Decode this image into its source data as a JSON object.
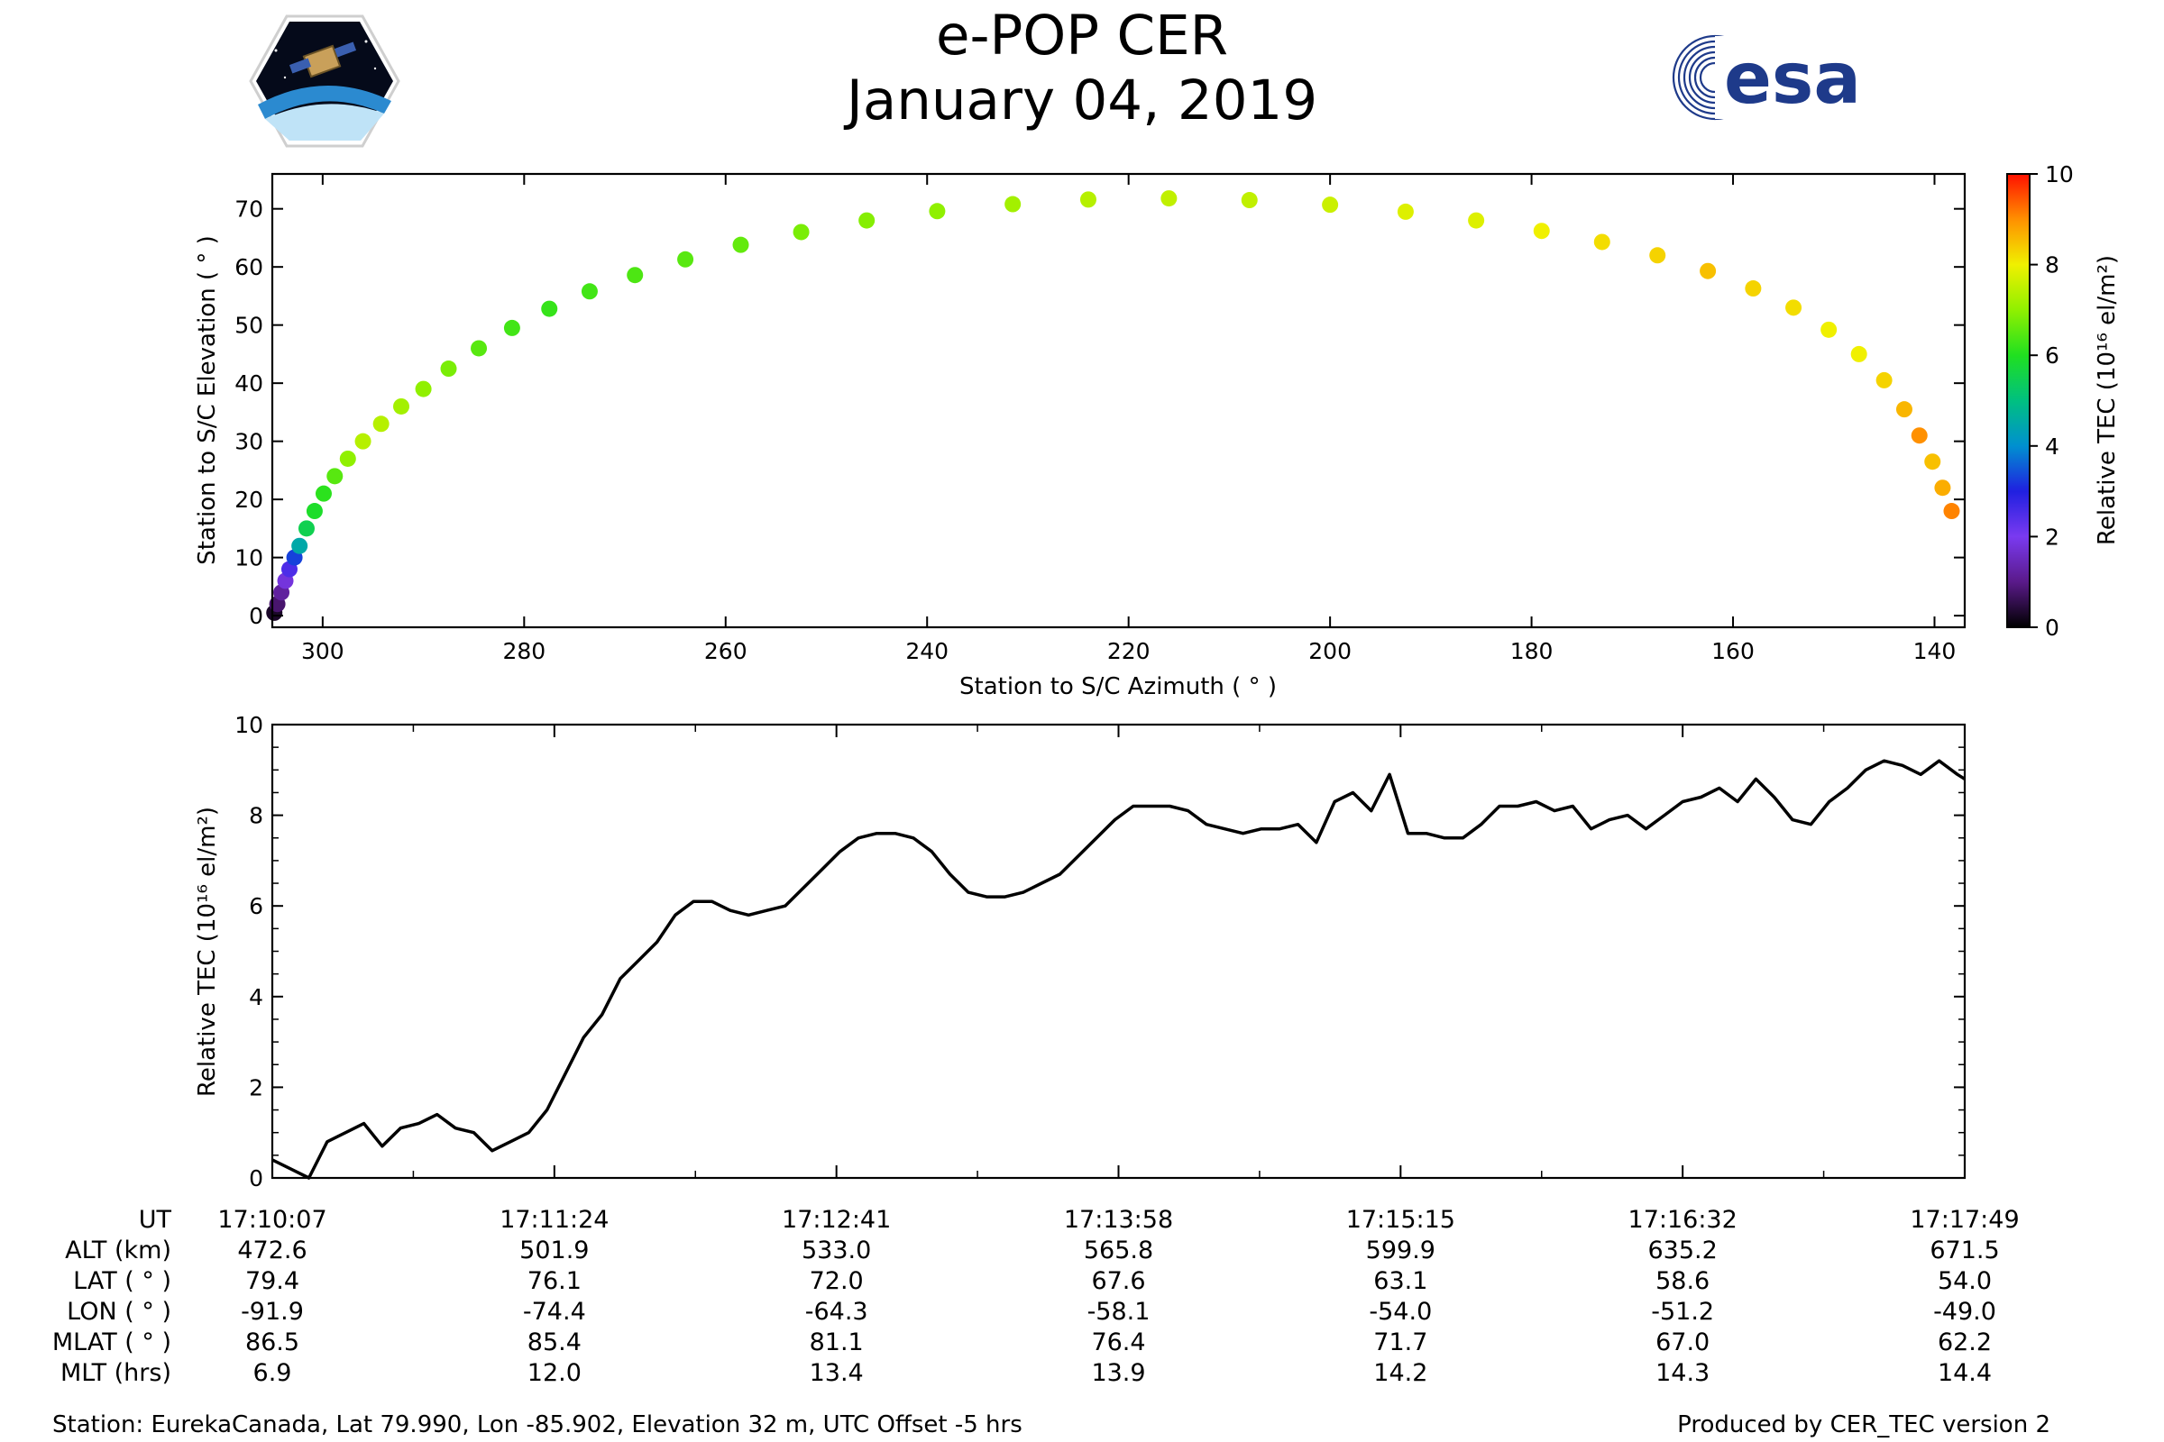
{
  "header": {
    "title": "e-POP CER",
    "date": "January 04, 2019"
  },
  "logos": {
    "left": "cassiope-mission-logo",
    "right": "esa-logo",
    "esa_text": "esa",
    "esa_color": "#1e3a8a"
  },
  "chart_data": [
    {
      "type": "scatter",
      "name": "elevation-azimuth",
      "xlabel": "Station to S/C Azimuth ( ° )",
      "ylabel": "Station to S/C Elevation ( ° )",
      "xlim": [
        305,
        137
      ],
      "ylim": [
        -2,
        76
      ],
      "xticks": [
        300,
        280,
        260,
        240,
        220,
        200,
        180,
        160,
        140
      ],
      "yticks": [
        0,
        10,
        20,
        30,
        40,
        50,
        60,
        70
      ],
      "colorbar": {
        "label": "Relative TEC (10¹⁶ el/m²)",
        "range": [
          0,
          10
        ],
        "ticks": [
          0,
          2,
          4,
          6,
          8,
          10
        ],
        "colormap": "gist_ncar-like"
      },
      "points": [
        {
          "az": 304.8,
          "el": 0.5,
          "tec": 0.3
        },
        {
          "az": 304.5,
          "el": 2.0,
          "tec": 0.8
        },
        {
          "az": 304.1,
          "el": 4.0,
          "tec": 1.2
        },
        {
          "az": 303.7,
          "el": 6.0,
          "tec": 1.8
        },
        {
          "az": 303.3,
          "el": 8.0,
          "tec": 2.5
        },
        {
          "az": 302.8,
          "el": 10.0,
          "tec": 3.3
        },
        {
          "az": 302.3,
          "el": 12.0,
          "tec": 4.5
        },
        {
          "az": 301.6,
          "el": 15.0,
          "tec": 5.5
        },
        {
          "az": 300.8,
          "el": 18.0,
          "tec": 5.9
        },
        {
          "az": 299.9,
          "el": 21.0,
          "tec": 6.1
        },
        {
          "az": 298.8,
          "el": 24.0,
          "tec": 6.5
        },
        {
          "az": 297.5,
          "el": 27.0,
          "tec": 7.0
        },
        {
          "az": 296.0,
          "el": 30.0,
          "tec": 7.4
        },
        {
          "az": 294.2,
          "el": 33.0,
          "tec": 7.4
        },
        {
          "az": 292.2,
          "el": 36.0,
          "tec": 7.2
        },
        {
          "az": 290.0,
          "el": 39.0,
          "tec": 7.0
        },
        {
          "az": 287.5,
          "el": 42.5,
          "tec": 6.8
        },
        {
          "az": 284.5,
          "el": 46.0,
          "tec": 6.5
        },
        {
          "az": 281.2,
          "el": 49.5,
          "tec": 6.3
        },
        {
          "az": 277.5,
          "el": 52.8,
          "tec": 6.2
        },
        {
          "az": 273.5,
          "el": 55.8,
          "tec": 6.3
        },
        {
          "az": 269.0,
          "el": 58.6,
          "tec": 6.4
        },
        {
          "az": 264.0,
          "el": 61.3,
          "tec": 6.5
        },
        {
          "az": 258.5,
          "el": 63.8,
          "tec": 6.6
        },
        {
          "az": 252.5,
          "el": 66.0,
          "tec": 6.8
        },
        {
          "az": 246.0,
          "el": 68.0,
          "tec": 6.9
        },
        {
          "az": 239.0,
          "el": 69.6,
          "tec": 7.0
        },
        {
          "az": 231.5,
          "el": 70.8,
          "tec": 7.2
        },
        {
          "az": 224.0,
          "el": 71.6,
          "tec": 7.4
        },
        {
          "az": 216.0,
          "el": 71.8,
          "tec": 7.5
        },
        {
          "az": 208.0,
          "el": 71.5,
          "tec": 7.5
        },
        {
          "az": 200.0,
          "el": 70.7,
          "tec": 7.6
        },
        {
          "az": 192.5,
          "el": 69.5,
          "tec": 7.8
        },
        {
          "az": 185.5,
          "el": 68.0,
          "tec": 7.8
        },
        {
          "az": 179.0,
          "el": 66.2,
          "tec": 8.0
        },
        {
          "az": 173.0,
          "el": 64.3,
          "tec": 8.2
        },
        {
          "az": 167.5,
          "el": 62.0,
          "tec": 8.3
        },
        {
          "az": 162.5,
          "el": 59.3,
          "tec": 8.5
        },
        {
          "az": 158.0,
          "el": 56.3,
          "tec": 8.3
        },
        {
          "az": 154.0,
          "el": 53.0,
          "tec": 8.2
        },
        {
          "az": 150.5,
          "el": 49.2,
          "tec": 8.0
        },
        {
          "az": 147.5,
          "el": 45.0,
          "tec": 8.0
        },
        {
          "az": 145.0,
          "el": 40.5,
          "tec": 8.3
        },
        {
          "az": 143.0,
          "el": 35.5,
          "tec": 8.6
        },
        {
          "az": 141.5,
          "el": 31.0,
          "tec": 9.0
        },
        {
          "az": 140.2,
          "el": 26.5,
          "tec": 8.5
        },
        {
          "az": 139.2,
          "el": 22.0,
          "tec": 8.7
        },
        {
          "az": 138.3,
          "el": 18.0,
          "tec": 9.1
        }
      ]
    },
    {
      "type": "line",
      "name": "tec-timeseries",
      "xlabel": "",
      "ylabel": "Relative TEC (10¹⁶ el/m²)",
      "ylim": [
        0,
        10
      ],
      "yticks": [
        0,
        2,
        4,
        6,
        8,
        10
      ],
      "xlim_seconds": [
        0,
        462
      ],
      "x_seconds": [
        0,
        5,
        10,
        15,
        20,
        25,
        30,
        35,
        40,
        45,
        50,
        55,
        60,
        65,
        70,
        75,
        80,
        85,
        90,
        95,
        100,
        105,
        110,
        115,
        120,
        125,
        130,
        135,
        140,
        145,
        150,
        155,
        160,
        165,
        170,
        175,
        180,
        185,
        190,
        195,
        200,
        205,
        210,
        215,
        220,
        225,
        230,
        235,
        240,
        245,
        250,
        255,
        260,
        265,
        270,
        275,
        280,
        285,
        290,
        295,
        300,
        305,
        310,
        315,
        320,
        325,
        330,
        335,
        340,
        345,
        350,
        355,
        360,
        365,
        370,
        375,
        380,
        385,
        390,
        395,
        400,
        405,
        410,
        415,
        420,
        425,
        430,
        435,
        440,
        445,
        450,
        455,
        460,
        462
      ],
      "values": [
        0.4,
        0.2,
        0.0,
        0.8,
        1.0,
        1.2,
        0.7,
        1.1,
        1.2,
        1.4,
        1.1,
        1.0,
        0.6,
        0.8,
        1.0,
        1.5,
        2.3,
        3.1,
        3.6,
        4.4,
        4.8,
        5.2,
        5.8,
        6.1,
        6.1,
        5.9,
        5.8,
        5.9,
        6.0,
        6.4,
        6.8,
        7.2,
        7.5,
        7.6,
        7.6,
        7.5,
        7.2,
        6.7,
        6.3,
        6.2,
        6.2,
        6.3,
        6.5,
        6.7,
        7.1,
        7.5,
        7.9,
        8.2,
        8.2,
        8.2,
        8.1,
        7.8,
        7.7,
        7.6,
        7.7,
        7.7,
        7.8,
        7.4,
        8.3,
        8.5,
        8.1,
        8.9,
        7.6,
        7.6,
        7.5,
        7.5,
        7.8,
        8.2,
        8.2,
        8.3,
        8.1,
        8.2,
        7.7,
        7.9,
        8.0,
        7.7,
        8.0,
        8.3,
        8.4,
        8.6,
        8.3,
        8.8,
        8.4,
        7.9,
        7.8,
        8.3,
        8.6,
        9.0,
        9.2,
        9.1,
        8.9,
        9.2,
        8.9,
        8.8
      ]
    }
  ],
  "info_table": {
    "labels": [
      "UT",
      "ALT (km)",
      "LAT ( ° )",
      "LON ( ° )",
      "MLAT ( ° )",
      "MLT (hrs)"
    ],
    "columns": [
      {
        "UT": "17:10:07",
        "ALT": "472.6",
        "LAT": "79.4",
        "LON": "-91.9",
        "MLAT": "86.5",
        "MLT": "6.9"
      },
      {
        "UT": "17:11:24",
        "ALT": "501.9",
        "LAT": "76.1",
        "LON": "-74.4",
        "MLAT": "85.4",
        "MLT": "12.0"
      },
      {
        "UT": "17:12:41",
        "ALT": "533.0",
        "LAT": "72.0",
        "LON": "-64.3",
        "MLAT": "81.1",
        "MLT": "13.4"
      },
      {
        "UT": "17:13:58",
        "ALT": "565.8",
        "LAT": "67.6",
        "LON": "-58.1",
        "MLAT": "76.4",
        "MLT": "13.9"
      },
      {
        "UT": "17:15:15",
        "ALT": "599.9",
        "LAT": "63.1",
        "LON": "-54.0",
        "MLAT": "71.7",
        "MLT": "14.2"
      },
      {
        "UT": "17:16:32",
        "ALT": "635.2",
        "LAT": "58.6",
        "LON": "-51.2",
        "MLAT": "67.0",
        "MLT": "14.3"
      },
      {
        "UT": "17:17:49",
        "ALT": "671.5",
        "LAT": "54.0",
        "LON": "-49.0",
        "MLAT": "62.2",
        "MLT": "14.4"
      }
    ]
  },
  "footer": {
    "station": "Station: EurekaCanada, Lat 79.990, Lon -85.902, Elevation 32 m, UTC Offset -5 hrs",
    "produced": "Produced by CER_TEC version 2"
  }
}
